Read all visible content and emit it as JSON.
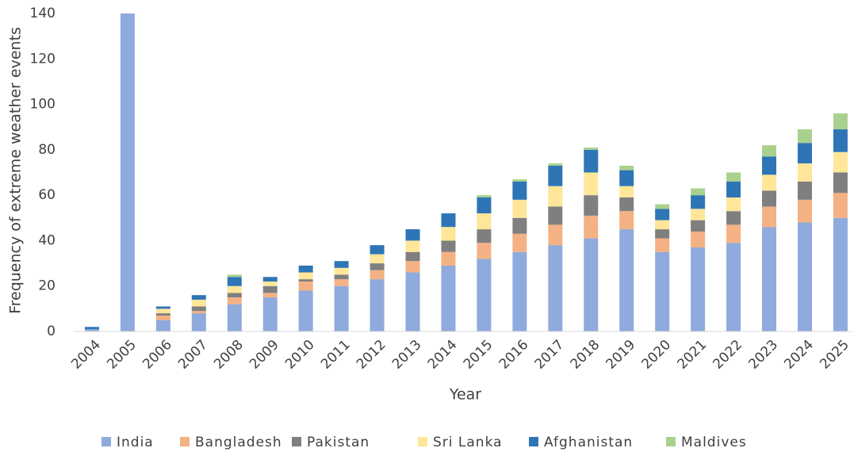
{
  "chart_data": {
    "type": "stacked_bar",
    "x_label": "Year",
    "y_label": "Frequency of extreme weather events",
    "categories": [
      "2004",
      "2005",
      "2006",
      "2007",
      "2008",
      "2009",
      "2010",
      "2011",
      "2012",
      "2013",
      "2014",
      "2015",
      "2016",
      "2017",
      "2018",
      "2019",
      "2020",
      "2021",
      "2022",
      "2023",
      "2024",
      "2025"
    ],
    "series": [
      {
        "name": "India",
        "color": "#8faadc",
        "values": [
          1,
          140,
          5,
          8,
          12,
          15,
          18,
          20,
          23,
          26,
          29,
          32,
          35,
          38,
          41,
          45,
          35,
          37,
          39,
          46,
          48,
          50
        ]
      },
      {
        "name": "Bangladesh",
        "color": "#f4b183",
        "values": [
          0,
          0,
          2,
          1,
          3,
          2,
          4,
          3,
          4,
          5,
          6,
          7,
          8,
          9,
          10,
          8,
          6,
          7,
          8,
          9,
          10,
          11
        ]
      },
      {
        "name": "Pakistan",
        "color": "#7f7f7f",
        "values": [
          0,
          0,
          1,
          2,
          2,
          3,
          1,
          2,
          3,
          4,
          5,
          6,
          7,
          8,
          9,
          6,
          4,
          5,
          6,
          7,
          8,
          9
        ]
      },
      {
        "name": "Sri Lanka",
        "color": "#ffe699",
        "values": [
          0,
          0,
          2,
          3,
          3,
          2,
          3,
          3,
          4,
          5,
          6,
          7,
          8,
          9,
          10,
          5,
          4,
          5,
          6,
          7,
          8,
          9
        ]
      },
      {
        "name": "Afghanistan",
        "color": "#2e75b6",
        "values": [
          1,
          0,
          1,
          2,
          4,
          2,
          3,
          3,
          4,
          5,
          6,
          7,
          8,
          9,
          10,
          7,
          5,
          6,
          7,
          8,
          9,
          10
        ]
      },
      {
        "name": "Maldives",
        "color": "#a9d18e",
        "values": [
          0,
          0,
          0,
          0,
          1,
          0,
          0,
          0,
          0,
          0,
          0,
          1,
          1,
          1,
          1,
          2,
          2,
          3,
          4,
          5,
          6,
          7
        ]
      }
    ],
    "ylim": [
      0,
      140
    ],
    "yticks": [
      0,
      20,
      40,
      60,
      80,
      100,
      120,
      140
    ],
    "grid": false,
    "legend": "bottom"
  }
}
